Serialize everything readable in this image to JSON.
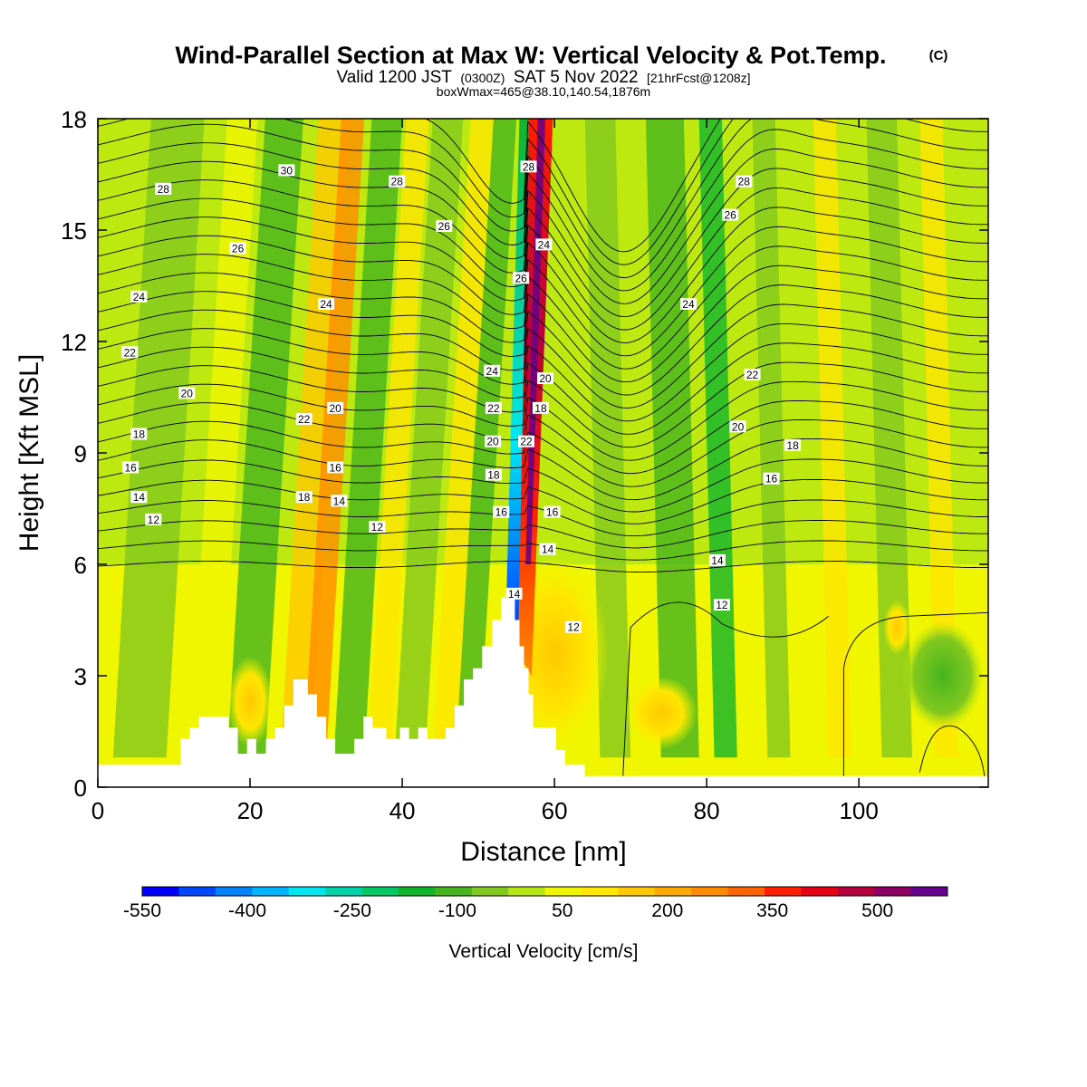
{
  "title": {
    "main": "Wind-Parallel Section at Max W: Vertical Velocity & Pot.Temp.",
    "copyright": "(C)",
    "valid_prefix": "Valid 1200 JST",
    "valid_utc": "(0300Z)",
    "valid_date": "SAT 5 Nov 2022",
    "forecast": "[21hrFcst@1208z]",
    "box_info": "boxWmax=465@38.10,140.54,1876m"
  },
  "colors": {
    "palette": [
      "#0000ff",
      "#0046ff",
      "#0082ff",
      "#00b4ff",
      "#00e6f0",
      "#00d2aa",
      "#00c864",
      "#10b42c",
      "#46b41e",
      "#82c81e",
      "#b4e614",
      "#f0f500",
      "#ffe600",
      "#ffc800",
      "#ffaa00",
      "#ff8c00",
      "#ff6400",
      "#ff1e00",
      "#e60014",
      "#b4003c",
      "#8c0064",
      "#64008c"
    ],
    "contour": "#000000",
    "terrain": "#ffffff"
  },
  "chart_data": {
    "type": "heatmap",
    "description_free": true,
    "xlabel": "Distance [nm]",
    "ylabel": "Height [Kft MSL]",
    "xlim": [
      0,
      117
    ],
    "ylim": [
      0,
      18
    ],
    "x_ticks": [
      "0",
      "20",
      "40",
      "60",
      "80",
      "100"
    ],
    "x_tick_values": [
      0,
      20,
      40,
      60,
      80,
      100
    ],
    "y_ticks": [
      "0",
      "3",
      "6",
      "9",
      "12",
      "15",
      "18"
    ],
    "y_tick_values": [
      0,
      3,
      6,
      9,
      12,
      15,
      18
    ],
    "colorbar": {
      "label": "Vertical Velocity [cm/s]",
      "min": -550,
      "max": 600,
      "step": 50,
      "tick_labels": [
        "-550",
        "-400",
        "-250",
        "-100",
        "50",
        "200",
        "350",
        "500"
      ],
      "tick_values": [
        -550,
        -400,
        -250,
        -100,
        50,
        200,
        350,
        500
      ]
    },
    "terrain_profile_kft": [
      [
        0,
        0.6
      ],
      [
        10.9,
        0.6
      ],
      [
        10.9,
        1.3
      ],
      [
        12.1,
        1.3
      ],
      [
        12.1,
        1.6
      ],
      [
        13.3,
        1.6
      ],
      [
        13.3,
        1.9
      ],
      [
        17.2,
        1.9
      ],
      [
        17.2,
        1.6
      ],
      [
        18.4,
        1.6
      ],
      [
        18.4,
        0.9
      ],
      [
        19.6,
        0.9
      ],
      [
        19.6,
        1.3
      ],
      [
        20.8,
        1.3
      ],
      [
        20.8,
        0.9
      ],
      [
        22.1,
        0.9
      ],
      [
        22.1,
        1.3
      ],
      [
        23.3,
        1.3
      ],
      [
        23.3,
        1.6
      ],
      [
        24.5,
        1.6
      ],
      [
        24.5,
        2.2
      ],
      [
        25.7,
        2.2
      ],
      [
        25.7,
        2.9
      ],
      [
        27.6,
        2.9
      ],
      [
        27.6,
        2.5
      ],
      [
        28.8,
        2.5
      ],
      [
        28.8,
        1.9
      ],
      [
        30.0,
        1.9
      ],
      [
        30.0,
        1.3
      ],
      [
        31.2,
        1.3
      ],
      [
        31.2,
        0.9
      ],
      [
        33.7,
        0.9
      ],
      [
        33.7,
        1.3
      ],
      [
        34.9,
        1.3
      ],
      [
        34.9,
        1.9
      ],
      [
        36.1,
        1.9
      ],
      [
        36.1,
        1.6
      ],
      [
        37.9,
        1.6
      ],
      [
        37.9,
        1.3
      ],
      [
        39.7,
        1.3
      ],
      [
        39.7,
        1.6
      ],
      [
        40.9,
        1.6
      ],
      [
        40.9,
        1.3
      ],
      [
        42.1,
        1.3
      ],
      [
        42.1,
        1.6
      ],
      [
        43.3,
        1.6
      ],
      [
        43.3,
        1.3
      ],
      [
        45.7,
        1.3
      ],
      [
        45.7,
        1.6
      ],
      [
        46.9,
        1.6
      ],
      [
        46.9,
        2.2
      ],
      [
        48.1,
        2.2
      ],
      [
        48.1,
        2.9
      ],
      [
        49.3,
        2.9
      ],
      [
        49.3,
        3.2
      ],
      [
        50.5,
        3.2
      ],
      [
        50.5,
        3.8
      ],
      [
        51.8,
        3.8
      ],
      [
        51.8,
        4.5
      ],
      [
        53.0,
        4.5
      ],
      [
        53.0,
        5.1
      ],
      [
        54.8,
        5.1
      ],
      [
        54.8,
        4.5
      ],
      [
        55.4,
        4.5
      ],
      [
        55.4,
        3.8
      ],
      [
        56.0,
        3.8
      ],
      [
        56.0,
        3.2
      ],
      [
        56.6,
        3.2
      ],
      [
        56.6,
        2.5
      ],
      [
        57.2,
        2.5
      ],
      [
        57.2,
        1.6
      ],
      [
        58.4,
        1.6
      ],
      [
        58.4,
        1.6
      ],
      [
        60.2,
        1.6
      ],
      [
        60.2,
        1.0
      ],
      [
        61.4,
        1.0
      ],
      [
        61.4,
        0.6
      ],
      [
        64.0,
        0.6
      ],
      [
        64.0,
        0.3
      ],
      [
        65.3,
        0.3
      ],
      [
        65.3,
        0.3
      ],
      [
        117,
        0.3
      ]
    ],
    "contour_labels_K": [
      {
        "label": "30",
        "x": 24.8,
        "y": 16.6
      },
      {
        "label": "28",
        "x": 8.6,
        "y": 16.1
      },
      {
        "label": "28",
        "x": 39.3,
        "y": 16.3
      },
      {
        "label": "28",
        "x": 56.6,
        "y": 16.7
      },
      {
        "label": "28",
        "x": 84.9,
        "y": 16.3
      },
      {
        "label": "26",
        "x": 18.4,
        "y": 14.5
      },
      {
        "label": "26",
        "x": 45.5,
        "y": 15.1
      },
      {
        "label": "26",
        "x": 83.1,
        "y": 15.4
      },
      {
        "label": "26",
        "x": 55.6,
        "y": 13.7
      },
      {
        "label": "24",
        "x": 5.4,
        "y": 13.2
      },
      {
        "label": "24",
        "x": 30.0,
        "y": 13.0
      },
      {
        "label": "24",
        "x": 58.6,
        "y": 14.6
      },
      {
        "label": "24",
        "x": 77.6,
        "y": 13.0
      },
      {
        "label": "24",
        "x": 51.8,
        "y": 11.2
      },
      {
        "label": "22",
        "x": 4.2,
        "y": 11.7
      },
      {
        "label": "22",
        "x": 86.0,
        "y": 11.1
      },
      {
        "label": "22",
        "x": 52.0,
        "y": 10.2
      },
      {
        "label": "22",
        "x": 27.1,
        "y": 9.9
      },
      {
        "label": "22",
        "x": 56.3,
        "y": 9.3
      },
      {
        "label": "20",
        "x": 11.7,
        "y": 10.6
      },
      {
        "label": "20",
        "x": 31.2,
        "y": 10.2
      },
      {
        "label": "20",
        "x": 58.8,
        "y": 11.0
      },
      {
        "label": "20",
        "x": 84.1,
        "y": 9.7
      },
      {
        "label": "20",
        "x": 51.9,
        "y": 9.3
      },
      {
        "label": "18",
        "x": 5.4,
        "y": 9.5
      },
      {
        "label": "18",
        "x": 58.2,
        "y": 10.2
      },
      {
        "label": "18",
        "x": 91.3,
        "y": 9.2
      },
      {
        "label": "18",
        "x": 52.0,
        "y": 8.4
      },
      {
        "label": "18",
        "x": 27.1,
        "y": 7.8
      },
      {
        "label": "16",
        "x": 4.3,
        "y": 8.6
      },
      {
        "label": "16",
        "x": 31.2,
        "y": 8.6
      },
      {
        "label": "16",
        "x": 88.5,
        "y": 8.3
      },
      {
        "label": "16",
        "x": 53.0,
        "y": 7.4
      },
      {
        "label": "16",
        "x": 59.7,
        "y": 7.4
      },
      {
        "label": "14",
        "x": 5.4,
        "y": 7.8
      },
      {
        "label": "14",
        "x": 31.7,
        "y": 7.7
      },
      {
        "label": "14",
        "x": 59.1,
        "y": 6.4
      },
      {
        "label": "14",
        "x": 81.4,
        "y": 6.1
      },
      {
        "label": "14",
        "x": 54.7,
        "y": 5.2
      },
      {
        "label": "12",
        "x": 7.3,
        "y": 7.2
      },
      {
        "label": "12",
        "x": 36.7,
        "y": 7.0
      },
      {
        "label": "12",
        "x": 82.0,
        "y": 4.9
      },
      {
        "label": "12",
        "x": 62.5,
        "y": 4.3
      }
    ]
  }
}
